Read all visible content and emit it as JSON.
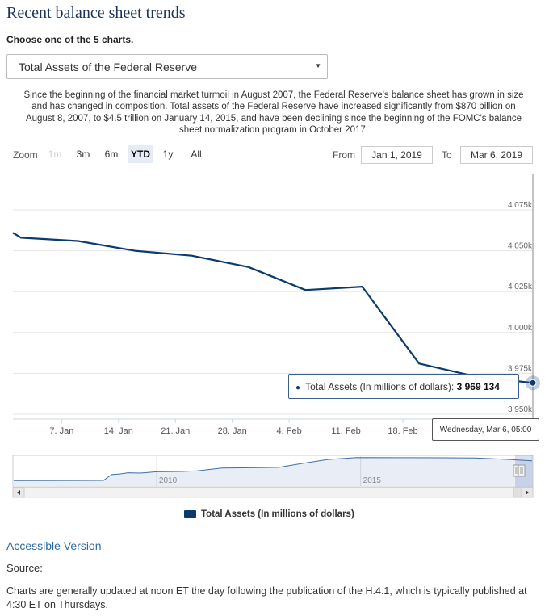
{
  "page": {
    "title": "Recent balance sheet trends",
    "choose_label": "Choose one of the 5 charts.",
    "selected_chart": "Total Assets of the Federal Reserve",
    "description": "Since the beginning of the financial market turmoil in August 2007, the Federal Reserve's balance sheet has grown in size and has changed in composition. Total assets of the Federal Reserve have increased significantly from $870 billion on August 8, 2007, to $4.5 trillion on January 14, 2015, and have been declining since the beginning of the FOMC's balance sheet normalization program in October 2017."
  },
  "controls": {
    "zoom_label": "Zoom",
    "zoom_buttons": [
      "1m",
      "3m",
      "6m",
      "YTD",
      "1y",
      "All"
    ],
    "zoom_active": "YTD",
    "zoom_disabled": [
      "1m"
    ],
    "from_label": "From",
    "from_value": "Jan 1, 2019",
    "to_label": "To",
    "to_value": "Mar 6, 2019"
  },
  "tooltip": {
    "series": "Total Assets (In millions of dollars):",
    "value": "3 969 134",
    "date": "Wednesday, Mar 6, 05:00"
  },
  "chart_data": {
    "type": "line",
    "series": [
      {
        "name": "Total Assets (In millions of dollars)",
        "color": "#0b3a6e",
        "points": [
          {
            "x": "2019-01-01",
            "y": 4061000
          },
          {
            "x": "2019-01-02",
            "y": 4058000
          },
          {
            "x": "2019-01-09",
            "y": 4056000
          },
          {
            "x": "2019-01-16",
            "y": 4050000
          },
          {
            "x": "2019-01-23",
            "y": 4047000
          },
          {
            "x": "2019-01-30",
            "y": 4040000
          },
          {
            "x": "2019-02-06",
            "y": 4026000
          },
          {
            "x": "2019-02-13",
            "y": 4028000
          },
          {
            "x": "2019-02-20",
            "y": 3981000
          },
          {
            "x": "2019-02-27",
            "y": 3973000
          },
          {
            "x": "2019-03-06",
            "y": 3969134
          }
        ]
      }
    ],
    "xlim": [
      "2019-01-01",
      "2019-03-06"
    ],
    "ylim": [
      3950000,
      4075000
    ],
    "x_ticks": [
      "7. Jan",
      "14. Jan",
      "21. Jan",
      "28. Jan",
      "4. Feb",
      "11. Feb",
      "18. Feb"
    ],
    "y_ticks": [
      "3 950k",
      "3 975k",
      "4 000k",
      "4 025k",
      "4 050k",
      "4 075k"
    ],
    "grid": true,
    "legend": "bottom",
    "navigator": {
      "labels": [
        "2010",
        "2015"
      ],
      "xlim": [
        2006.5,
        2019.2
      ],
      "ylim": [
        0,
        4600000
      ],
      "points": [
        [
          2006.5,
          870000
        ],
        [
          2008.0,
          880000
        ],
        [
          2008.7,
          900000
        ],
        [
          2008.9,
          1800000
        ],
        [
          2009.1,
          1900000
        ],
        [
          2009.3,
          2100000
        ],
        [
          2009.6,
          2050000
        ],
        [
          2010.0,
          2250000
        ],
        [
          2010.6,
          2300000
        ],
        [
          2011.0,
          2400000
        ],
        [
          2011.6,
          2850000
        ],
        [
          2012.5,
          2900000
        ],
        [
          2013.0,
          2950000
        ],
        [
          2013.6,
          3600000
        ],
        [
          2014.2,
          4200000
        ],
        [
          2014.9,
          4500000
        ],
        [
          2016.0,
          4480000
        ],
        [
          2017.0,
          4470000
        ],
        [
          2017.8,
          4450000
        ],
        [
          2018.5,
          4250000
        ],
        [
          2019.2,
          4000000
        ]
      ]
    }
  },
  "legend_label": "Total Assets (In millions of dollars)",
  "footer": {
    "accessible_link": "Accessible Version",
    "source": "Source:",
    "note": "Charts are generally updated at noon ET the day following the publication of the H.4.1, which is typically published at 4:30 ET on Thursdays."
  }
}
